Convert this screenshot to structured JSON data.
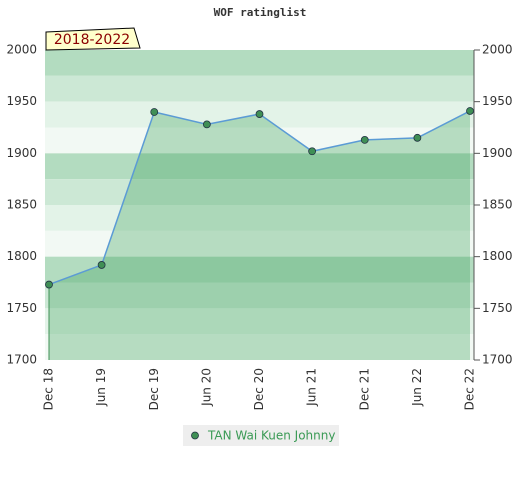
{
  "chart_data": {
    "type": "line",
    "title": "WOF ratinglist",
    "period_label": "2018-2022",
    "categories": [
      "Dec 18",
      "Jun 19",
      "Dec 19",
      "Jun 20",
      "Dec 20",
      "Jun 21",
      "Dec 21",
      "Jun 22",
      "Dec 22"
    ],
    "series": [
      {
        "name": "TAN Wai Kuen Johnny",
        "color": "#5b9bd5",
        "marker_color": "#3f8f55",
        "values": [
          1773,
          1792,
          1940,
          1928,
          1938,
          1902,
          1913,
          1915,
          1941
        ]
      }
    ],
    "ylim": [
      1700,
      2000
    ],
    "yticks": [
      1700,
      1750,
      1800,
      1850,
      1900,
      1950,
      2000
    ],
    "y2lim": [
      1700,
      2000
    ],
    "y2ticks": [
      1700,
      1750,
      1800,
      1850,
      1900,
      1950,
      2000
    ],
    "legend": "bottom"
  }
}
